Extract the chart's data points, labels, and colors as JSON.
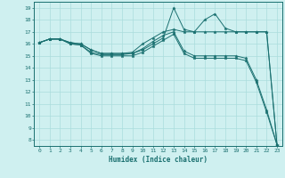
{
  "title": "",
  "xlabel": "Humidex (Indice chaleur)",
  "ylabel": "",
  "xlim": [
    -0.5,
    23.5
  ],
  "ylim": [
    7.5,
    19.5
  ],
  "xticks": [
    0,
    1,
    2,
    3,
    4,
    5,
    6,
    7,
    8,
    9,
    10,
    11,
    12,
    13,
    14,
    15,
    16,
    17,
    18,
    19,
    20,
    21,
    22,
    23
  ],
  "yticks": [
    8,
    9,
    10,
    11,
    12,
    13,
    14,
    15,
    16,
    17,
    18,
    19
  ],
  "bg_color": "#cff0f0",
  "grid_color": "#aadddd",
  "line_color": "#1a7070",
  "lines": [
    [
      16.1,
      16.4,
      16.4,
      16.1,
      16.0,
      15.5,
      15.2,
      15.2,
      15.2,
      15.2,
      15.5,
      16.0,
      16.5,
      19.0,
      17.2,
      17.0,
      18.0,
      18.5,
      17.3,
      17.0,
      17.0,
      17.0,
      17.0,
      7.6
    ],
    [
      16.1,
      16.4,
      16.4,
      16.1,
      16.0,
      15.5,
      15.2,
      15.2,
      15.2,
      15.3,
      16.0,
      16.5,
      17.0,
      17.2,
      17.0,
      17.0,
      17.0,
      17.0,
      17.0,
      17.0,
      17.0,
      17.0,
      17.0,
      7.6
    ],
    [
      16.1,
      16.4,
      16.4,
      16.0,
      15.9,
      15.3,
      15.1,
      15.1,
      15.1,
      15.2,
      15.6,
      16.2,
      16.7,
      17.0,
      15.4,
      15.0,
      15.0,
      15.0,
      15.0,
      15.0,
      14.8,
      13.0,
      10.5,
      7.6
    ],
    [
      16.1,
      16.4,
      16.4,
      16.0,
      15.9,
      15.2,
      15.0,
      15.0,
      15.0,
      15.0,
      15.3,
      15.8,
      16.3,
      16.8,
      15.2,
      14.8,
      14.8,
      14.8,
      14.8,
      14.8,
      14.6,
      12.8,
      10.3,
      7.6
    ]
  ]
}
